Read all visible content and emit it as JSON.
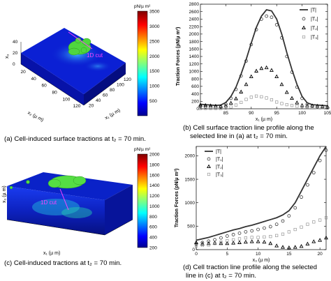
{
  "captions": {
    "a": "(a) Cell-induced surface tractions at t₂ = 70 min.",
    "b1": "(b) Cell surface traction line profile along the",
    "b2": "selected line in (a) at t₂ = 70 min.",
    "c": "(c) Cell-induced tractions at t₂ = 70 min.",
    "d1": "(d) Cell traction line profile along the selected",
    "d2": "line in (c) at t₂ = 70 min."
  },
  "chart_data": [
    {
      "type": "heatmap",
      "panel": "a",
      "colorbar_label": "pN/µ m²",
      "colorbar_ticks": [
        500,
        1000,
        1500,
        2000,
        2500,
        3000,
        3500
      ],
      "colorbar_range": [
        0,
        3500
      ],
      "annotation": "1D cut",
      "axis_x1": {
        "label": "x₁ (µ m)",
        "ticks": [
          20,
          40,
          60,
          80,
          100,
          120
        ]
      },
      "axis_x2": {
        "label": "x₂ (µ m)",
        "ticks": [
          20,
          40,
          60,
          80,
          100,
          120
        ]
      },
      "axis_x3": {
        "label": "x₃",
        "ticks": [
          0,
          20,
          40
        ]
      }
    },
    {
      "type": "line",
      "panel": "b",
      "xlabel": "x₁ (µ m)",
      "ylabel": "Traction Forces (pN/µ m²)",
      "xlim": [
        80,
        105
      ],
      "ylim": [
        0,
        2800
      ],
      "xticks": [
        85,
        90,
        95,
        100,
        105
      ],
      "yticks": [
        0,
        200,
        400,
        600,
        800,
        1000,
        1200,
        1400,
        1600,
        1800,
        2000,
        2200,
        2400,
        2600,
        2800
      ],
      "legend_position": "top-right",
      "x": [
        80,
        81,
        82,
        83,
        84,
        85,
        86,
        87,
        88,
        89,
        90,
        91,
        92,
        93,
        94,
        95,
        96,
        97,
        98,
        99,
        100,
        101,
        102,
        103,
        104,
        105
      ],
      "series": [
        {
          "name": "|T|",
          "style": "line",
          "values": [
            120,
            110,
            100,
            90,
            100,
            170,
            330,
            580,
            930,
            1320,
            1760,
            2180,
            2480,
            2650,
            2620,
            2400,
            2000,
            1500,
            1050,
            650,
            330,
            160,
            110,
            100,
            90,
            80
          ]
        },
        {
          "name": "|T₁|",
          "style": "circle",
          "values": [
            60,
            50,
            40,
            40,
            50,
            120,
            280,
            520,
            880,
            1280,
            1720,
            2120,
            2400,
            2480,
            2450,
            2250,
            1900,
            1400,
            980,
            580,
            280,
            120,
            70,
            50,
            40,
            30
          ]
        },
        {
          "name": "|T₂|",
          "style": "triangle",
          "values": [
            100,
            90,
            80,
            70,
            60,
            80,
            150,
            270,
            450,
            650,
            860,
            1010,
            1080,
            1100,
            1030,
            860,
            650,
            440,
            280,
            160,
            90,
            80,
            80,
            70,
            60,
            50
          ]
        },
        {
          "name": "|T₃|",
          "style": "square",
          "values": [
            10,
            10,
            10,
            10,
            10,
            20,
            50,
            100,
            170,
            250,
            310,
            340,
            320,
            290,
            240,
            180,
            140,
            110,
            90,
            70,
            60,
            50,
            40,
            30,
            30,
            20
          ]
        }
      ]
    },
    {
      "type": "heatmap",
      "panel": "c",
      "colorbar_label": "pN/µ m²",
      "colorbar_ticks": [
        200,
        400,
        600,
        800,
        1000,
        1200,
        1400,
        1600,
        1800,
        2000
      ],
      "colorbar_range": [
        200,
        2000
      ],
      "annotation": "1D cut",
      "axis_x1": {
        "label": "x₁ (µ m)"
      },
      "axis_x3": {
        "label": "x₃ (µ m)"
      }
    },
    {
      "type": "line",
      "panel": "d",
      "xlabel": "x₃ (µ m)",
      "ylabel": "Traction Forces (pN/µ m²)",
      "xlim": [
        0,
        21
      ],
      "ylim": [
        0,
        2200
      ],
      "xticks": [
        0,
        5,
        10,
        15,
        20
      ],
      "yticks": [
        0,
        500,
        1000,
        1500,
        2000
      ],
      "legend_position": "top-left",
      "x": [
        0,
        1,
        2,
        3,
        4,
        5,
        6,
        7,
        8,
        9,
        10,
        11,
        12,
        13,
        14,
        15,
        16,
        17,
        18,
        19,
        20,
        21
      ],
      "series": [
        {
          "name": "|T|",
          "style": "line",
          "values": [
            200,
            230,
            260,
            300,
            340,
            380,
            420,
            450,
            490,
            520,
            560,
            600,
            640,
            680,
            740,
            830,
            1000,
            1250,
            1500,
            1750,
            2000,
            2250
          ]
        },
        {
          "name": "|T₁|",
          "style": "circle",
          "values": [
            120,
            150,
            180,
            210,
            250,
            290,
            320,
            350,
            380,
            400,
            430,
            460,
            490,
            540,
            610,
            720,
            890,
            1120,
            1380,
            1640,
            1900,
            2120
          ]
        },
        {
          "name": "|T₂|",
          "style": "triangle",
          "values": [
            150,
            120,
            130,
            140,
            130,
            130,
            140,
            150,
            160,
            170,
            170,
            160,
            130,
            80,
            50,
            40,
            50,
            70,
            120,
            170,
            200,
            250
          ]
        },
        {
          "name": "|T₃|",
          "style": "square",
          "values": [
            80,
            90,
            100,
            130,
            160,
            190,
            210,
            230,
            250,
            260,
            260,
            270,
            280,
            300,
            330,
            380,
            430,
            480,
            540,
            590,
            630,
            680
          ]
        }
      ]
    }
  ]
}
